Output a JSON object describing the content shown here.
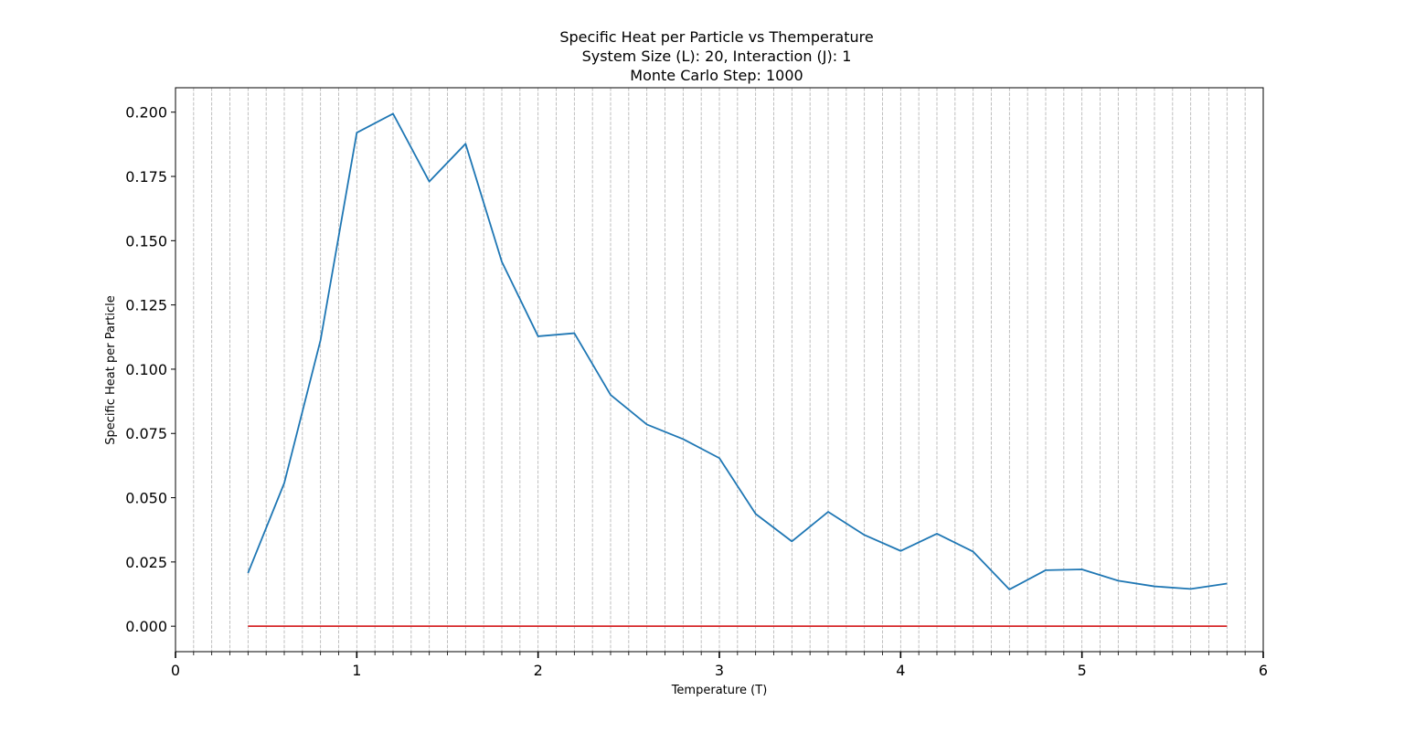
{
  "chart_data": {
    "type": "line",
    "title_lines": [
      "Specific Heat per Particle vs Themperature",
      "System Size (L): 20, Interaction (J): 1",
      "Monte Carlo Step: 1000"
    ],
    "xlabel": "Temperature (T)",
    "ylabel": "Specific Heat per Particle",
    "xlim": [
      0,
      6
    ],
    "ylim": [
      -0.0099,
      0.2095
    ],
    "x_major_ticks": [
      0,
      1,
      2,
      3,
      4,
      5,
      6
    ],
    "x_major_tick_labels": [
      "0",
      "1",
      "2",
      "3",
      "4",
      "5",
      "6"
    ],
    "x_minor_step": 0.1,
    "y_ticks": [
      0.0,
      0.025,
      0.05,
      0.075,
      0.1,
      0.125,
      0.15,
      0.175,
      0.2
    ],
    "y_tick_labels": [
      "0.000",
      "0.025",
      "0.050",
      "0.075",
      "0.100",
      "0.125",
      "0.150",
      "0.175",
      "0.200"
    ],
    "grid": "vertical dashed at minor x ticks",
    "series": [
      {
        "color": "#1f77b4",
        "x": [
          0.4,
          0.6,
          0.8,
          1.0,
          1.2,
          1.4,
          1.6,
          1.8,
          2.0,
          2.2,
          2.4,
          2.6,
          2.8,
          3.0,
          3.2,
          3.4,
          3.6,
          3.8,
          4.0,
          4.2,
          4.4,
          4.6,
          4.8,
          5.0,
          5.2,
          5.4,
          5.6,
          5.8
        ],
        "y": [
          0.0207,
          0.0557,
          0.1113,
          0.192,
          0.1994,
          0.173,
          0.1877,
          0.1418,
          0.1128,
          0.114,
          0.09,
          0.0785,
          0.0728,
          0.0654,
          0.0437,
          0.033,
          0.0445,
          0.0355,
          0.0293,
          0.036,
          0.029,
          0.0143,
          0.0218,
          0.0221,
          0.0177,
          0.0155,
          0.0145,
          0.0166
        ]
      },
      {
        "color": "#d62728",
        "x": [
          0.4,
          5.8
        ],
        "y": [
          0.0,
          0.0
        ]
      }
    ]
  }
}
